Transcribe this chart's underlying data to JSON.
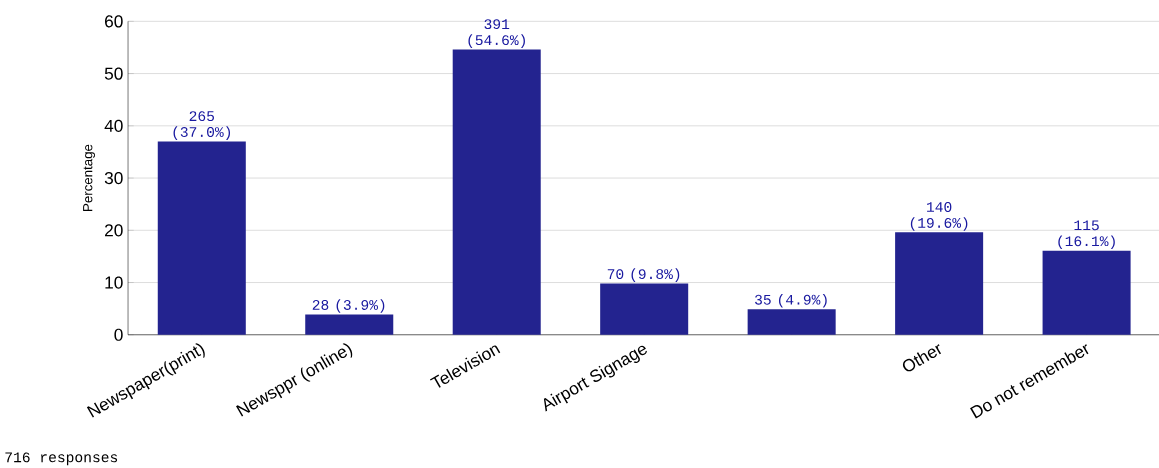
{
  "chart_data": {
    "type": "bar",
    "ylabel": "Percentage",
    "categories": [
      "Newspaper(print)",
      "Newsppr (online)",
      "Television",
      "Airport Signage",
      null,
      "Other",
      "Do not remember"
    ],
    "values": [
      37.0,
      3.9,
      54.6,
      9.8,
      4.9,
      19.6,
      16.1
    ],
    "value_labels": [
      "265 (37.0%)",
      "28 (3.9%)",
      "391 (54.6%)",
      "70 (9.8%)",
      "35 (4.9%)",
      "140 (19.6%)",
      "115 (16.1%)"
    ],
    "color": "#23238f",
    "ylim": [
      0,
      60
    ],
    "yticks": [
      0,
      10,
      20,
      30,
      40,
      50,
      60
    ],
    "grid": "y",
    "annotations": [
      "716 responses"
    ]
  }
}
